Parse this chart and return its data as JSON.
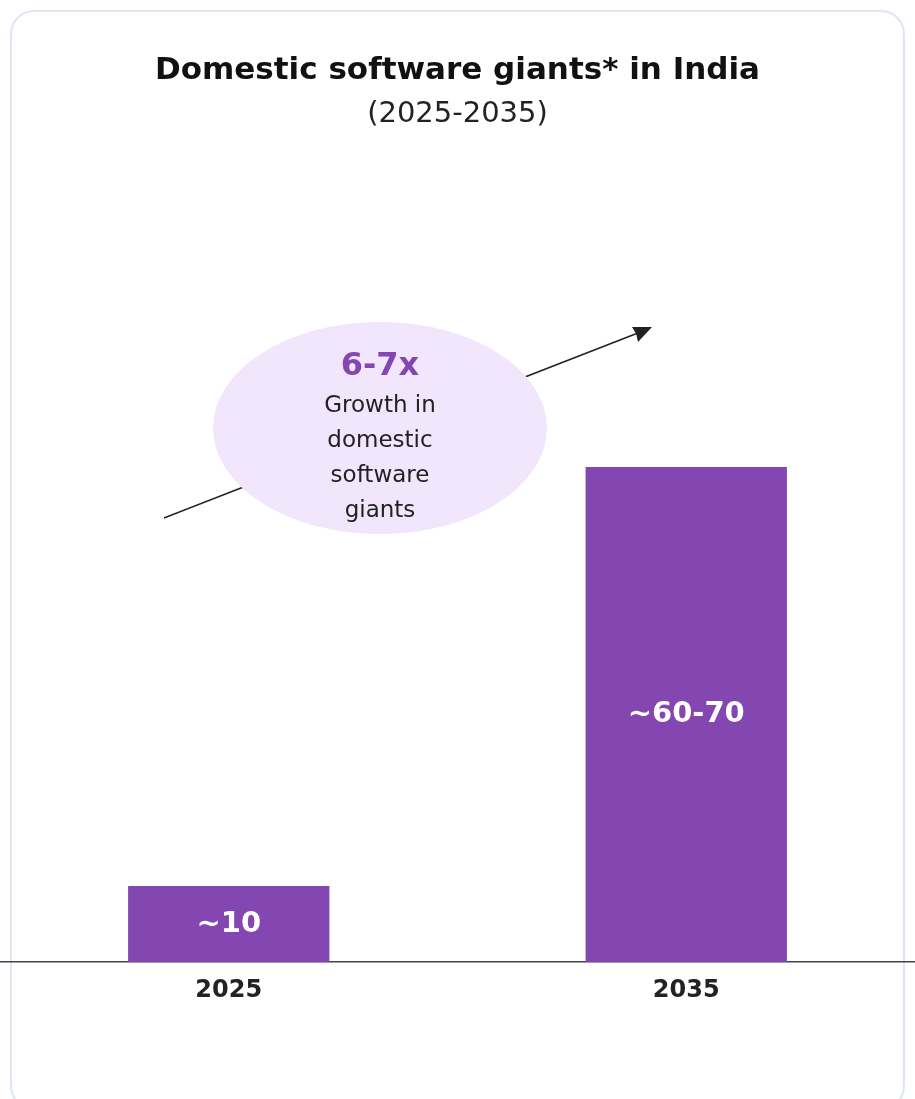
{
  "chart_data": {
    "type": "bar",
    "title": "Domestic software giants* in India",
    "subtitle": "(2025-2035)",
    "categories": [
      "2025",
      "2035"
    ],
    "values": [
      10,
      65
    ],
    "value_labels": [
      "~10",
      "~60-70"
    ],
    "color": "#8446b0",
    "tick_labels": "x",
    "grid": false,
    "legend": false,
    "annotations": [
      "6-7x",
      "Growth in domestic software giants"
    ]
  }
}
